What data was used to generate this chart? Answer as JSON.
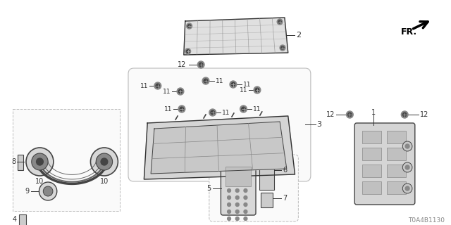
{
  "bg_color": "#ffffff",
  "part_code": "T0A4B1130",
  "line_color": "#333333",
  "light_gray": "#bbbbbb",
  "mid_gray": "#888888",
  "dark_gray": "#444444"
}
